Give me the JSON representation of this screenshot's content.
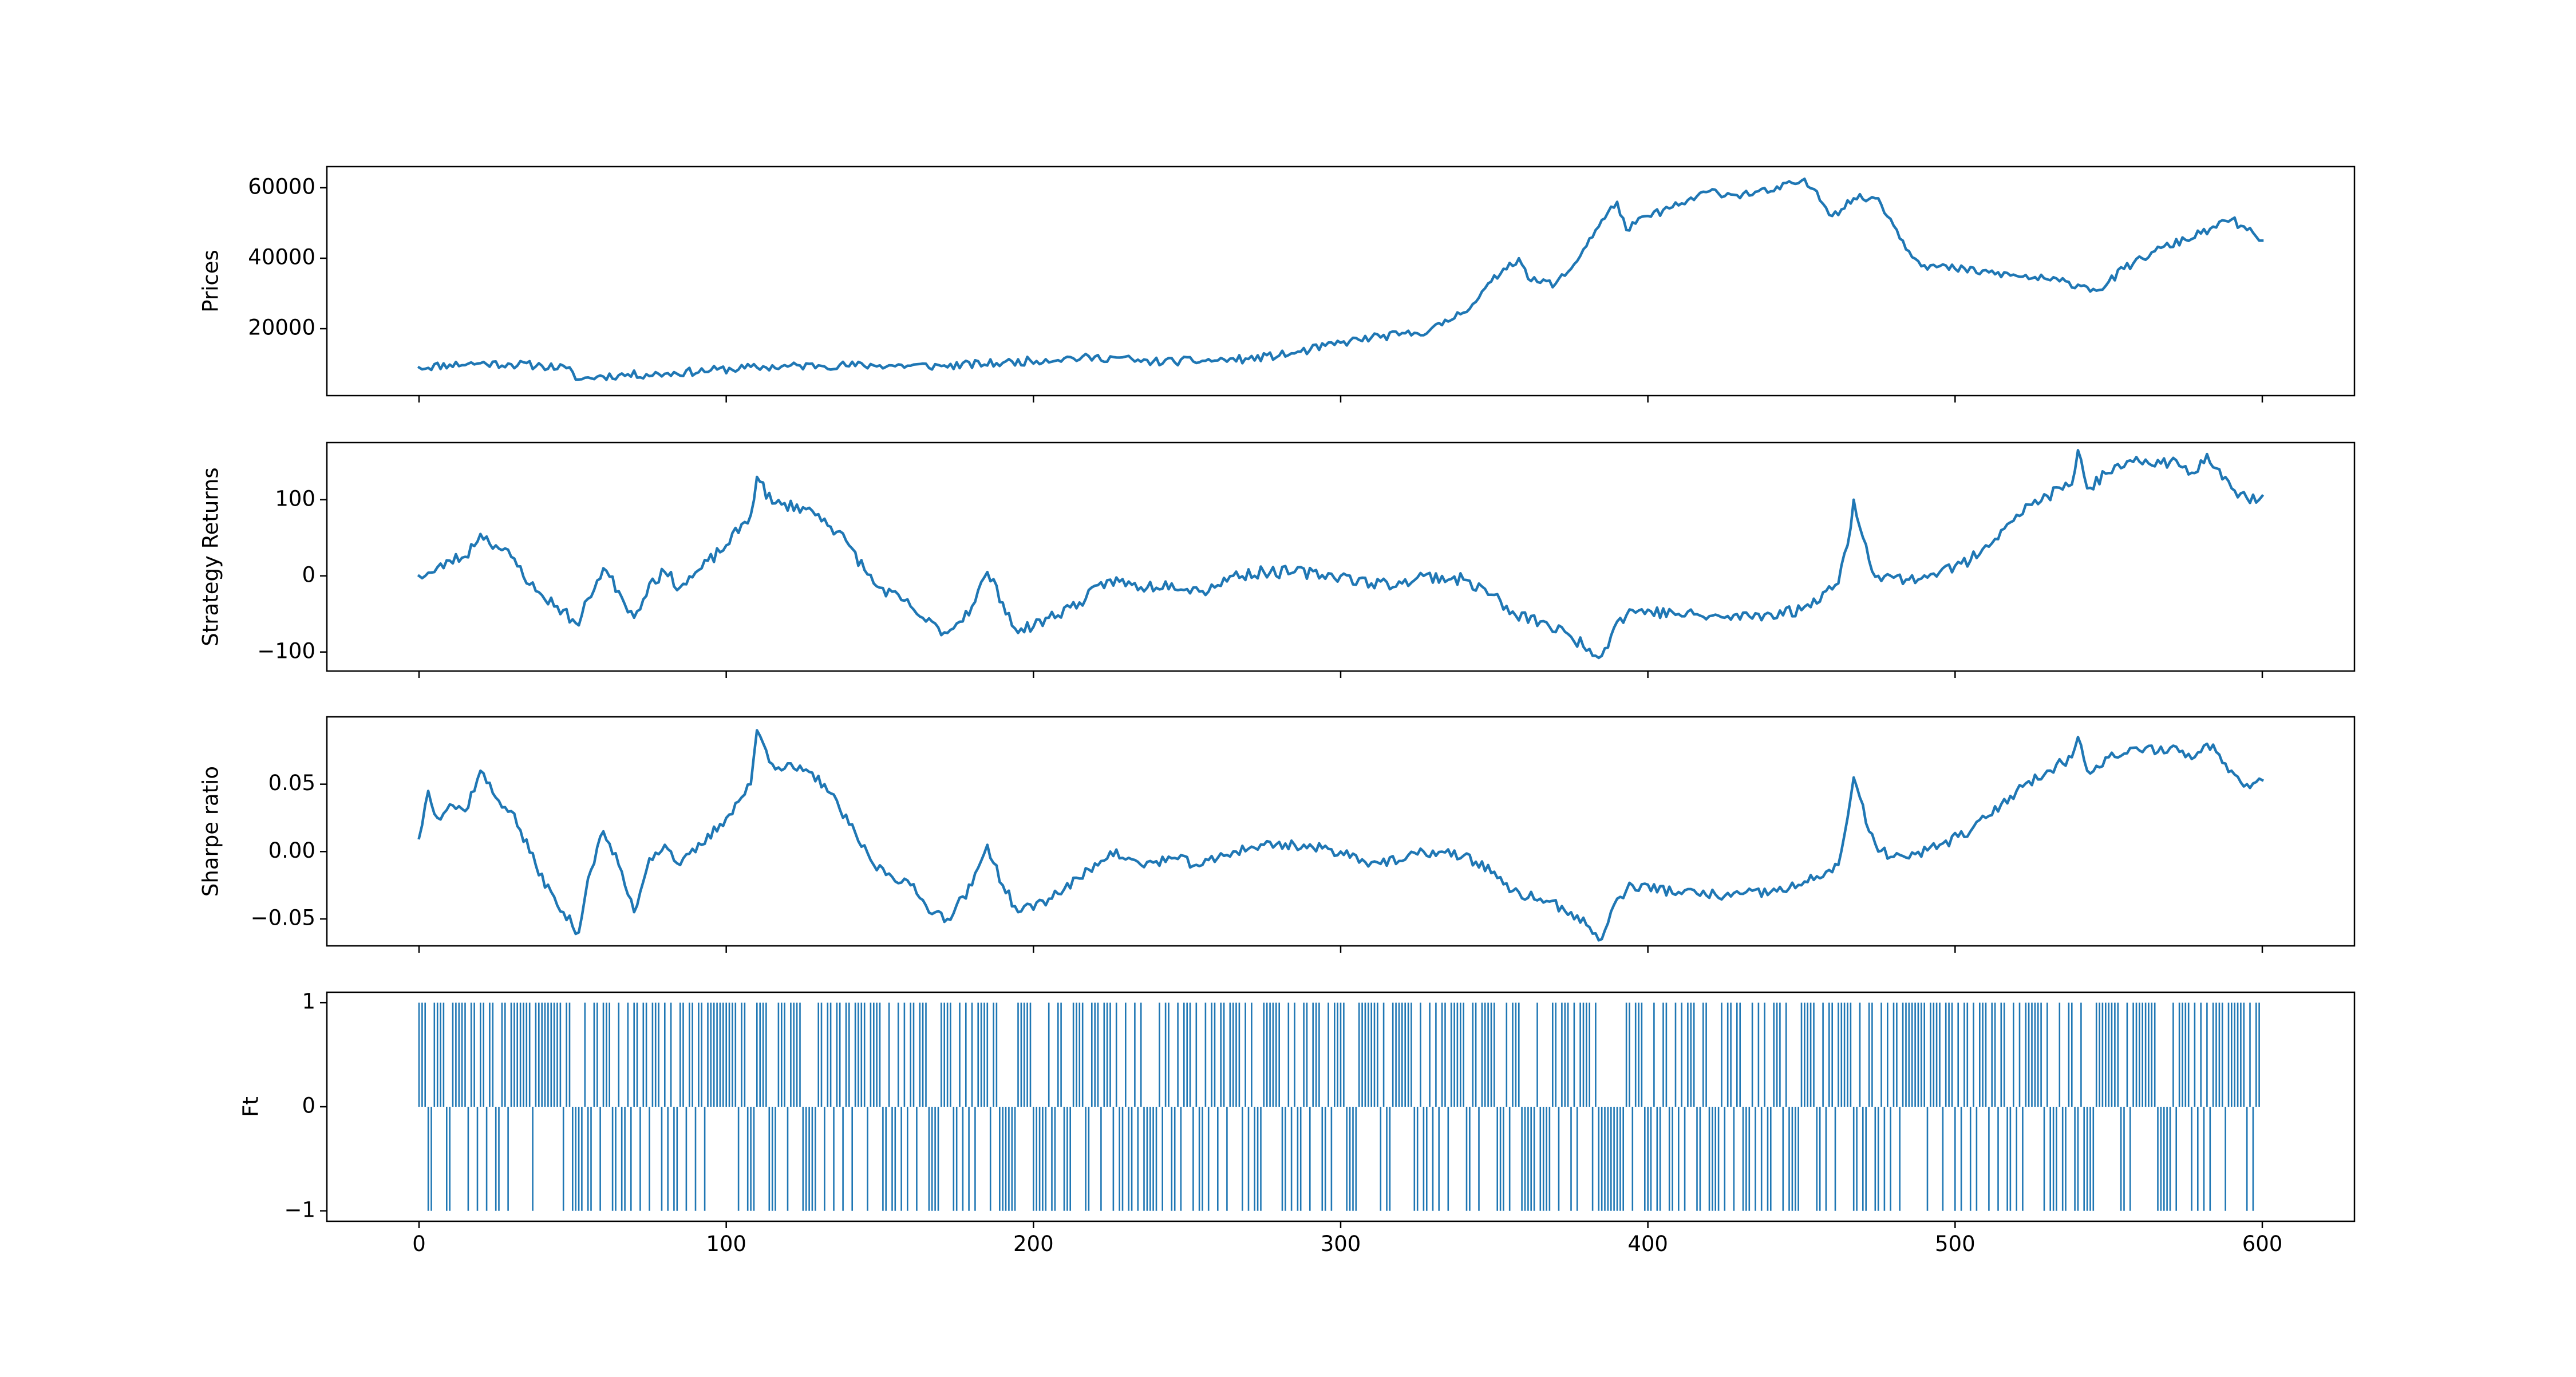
{
  "chart_data": [
    {
      "type": "line",
      "ylabel": "Prices",
      "xlim": [
        -30,
        630
      ],
      "ylim": [
        1000,
        66000
      ],
      "xticks": [
        0,
        100,
        200,
        300,
        400,
        500,
        600
      ],
      "xticklabels": [
        "",
        "",
        "",
        "",
        "",
        "",
        ""
      ],
      "yticks": [
        20000,
        40000,
        60000
      ],
      "yticklabels": [
        "20000",
        "40000",
        "60000"
      ],
      "color": "#1f77b4",
      "anchors": [
        [
          0,
          9000
        ],
        [
          10,
          9800
        ],
        [
          20,
          10200
        ],
        [
          30,
          9900
        ],
        [
          40,
          9500
        ],
        [
          48,
          8800
        ],
        [
          52,
          5600
        ],
        [
          58,
          6400
        ],
        [
          65,
          6800
        ],
        [
          80,
          7200
        ],
        [
          95,
          8200
        ],
        [
          110,
          9000
        ],
        [
          130,
          9600
        ],
        [
          150,
          9600
        ],
        [
          170,
          9400
        ],
        [
          190,
          10300
        ],
        [
          210,
          11600
        ],
        [
          228,
          11800
        ],
        [
          235,
          10600
        ],
        [
          255,
          10900
        ],
        [
          270,
          11400
        ],
        [
          285,
          13000
        ],
        [
          300,
          16000
        ],
        [
          310,
          17500
        ],
        [
          325,
          18700
        ],
        [
          333,
          21000
        ],
        [
          343,
          27000
        ],
        [
          353,
          37000
        ],
        [
          358,
          40000
        ],
        [
          362,
          33500
        ],
        [
          370,
          32800
        ],
        [
          375,
          37000
        ],
        [
          383,
          48000
        ],
        [
          390,
          56000
        ],
        [
          393,
          48000
        ],
        [
          400,
          52000
        ],
        [
          410,
          55000
        ],
        [
          420,
          59000
        ],
        [
          428,
          58000
        ],
        [
          440,
          59000
        ],
        [
          450,
          62000
        ],
        [
          455,
          59000
        ],
        [
          460,
          52000
        ],
        [
          467,
          57000
        ],
        [
          475,
          57000
        ],
        [
          485,
          42000
        ],
        [
          490,
          38000
        ],
        [
          500,
          37000
        ],
        [
          520,
          35000
        ],
        [
          530,
          34000
        ],
        [
          540,
          32500
        ],
        [
          547,
          31000
        ],
        [
          555,
          37000
        ],
        [
          565,
          42000
        ],
        [
          580,
          47000
        ],
        [
          590,
          51000
        ],
        [
          595,
          48000
        ],
        [
          600,
          45000
        ]
      ],
      "noise": 1200,
      "seed": 11
    },
    {
      "type": "line",
      "ylabel": "Strategy Returns",
      "xlim": [
        -30,
        630
      ],
      "ylim": [
        -125,
        175
      ],
      "xticks": [
        0,
        100,
        200,
        300,
        400,
        500,
        600
      ],
      "xticklabels": [
        "",
        "",
        "",
        "",
        "",
        "",
        ""
      ],
      "yticks": [
        -100,
        0,
        100
      ],
      "yticklabels": [
        "−100",
        "0",
        "100"
      ],
      "color": "#1f77b4",
      "anchors": [
        [
          0,
          0
        ],
        [
          5,
          5
        ],
        [
          10,
          20
        ],
        [
          15,
          25
        ],
        [
          20,
          55
        ],
        [
          25,
          40
        ],
        [
          30,
          25
        ],
        [
          38,
          -20
        ],
        [
          45,
          -40
        ],
        [
          52,
          -65
        ],
        [
          55,
          -30
        ],
        [
          60,
          10
        ],
        [
          65,
          -20
        ],
        [
          70,
          -55
        ],
        [
          75,
          -10
        ],
        [
          80,
          5
        ],
        [
          85,
          -15
        ],
        [
          92,
          10
        ],
        [
          100,
          40
        ],
        [
          108,
          80
        ],
        [
          110,
          130
        ],
        [
          115,
          95
        ],
        [
          125,
          90
        ],
        [
          132,
          75
        ],
        [
          140,
          40
        ],
        [
          148,
          -10
        ],
        [
          160,
          -40
        ],
        [
          165,
          -60
        ],
        [
          172,
          -75
        ],
        [
          180,
          -40
        ],
        [
          185,
          5
        ],
        [
          190,
          -35
        ],
        [
          195,
          -75
        ],
        [
          205,
          -55
        ],
        [
          215,
          -35
        ],
        [
          225,
          -5
        ],
        [
          235,
          -15
        ],
        [
          245,
          -10
        ],
        [
          255,
          -20
        ],
        [
          265,
          0
        ],
        [
          275,
          5
        ],
        [
          285,
          5
        ],
        [
          300,
          0
        ],
        [
          310,
          -10
        ],
        [
          320,
          -10
        ],
        [
          327,
          0
        ],
        [
          340,
          -5
        ],
        [
          350,
          -25
        ],
        [
          355,
          -50
        ],
        [
          365,
          -60
        ],
        [
          375,
          -80
        ],
        [
          385,
          -105
        ],
        [
          390,
          -60
        ],
        [
          395,
          -45
        ],
        [
          410,
          -50
        ],
        [
          425,
          -55
        ],
        [
          440,
          -50
        ],
        [
          450,
          -45
        ],
        [
          458,
          -20
        ],
        [
          462,
          -10
        ],
        [
          465,
          40
        ],
        [
          467,
          100
        ],
        [
          472,
          20
        ],
        [
          475,
          0
        ],
        [
          485,
          -5
        ],
        [
          495,
          5
        ],
        [
          505,
          20
        ],
        [
          510,
          40
        ],
        [
          515,
          60
        ],
        [
          520,
          80
        ],
        [
          530,
          105
        ],
        [
          538,
          120
        ],
        [
          540,
          165
        ],
        [
          543,
          115
        ],
        [
          550,
          135
        ],
        [
          560,
          150
        ],
        [
          570,
          150
        ],
        [
          578,
          135
        ],
        [
          582,
          160
        ],
        [
          586,
          140
        ],
        [
          590,
          115
        ],
        [
          595,
          102
        ],
        [
          600,
          105
        ]
      ],
      "noise": 8,
      "seed": 23
    },
    {
      "type": "line",
      "ylabel": "Sharpe ratio",
      "xlim": [
        -30,
        630
      ],
      "ylim": [
        -0.07,
        0.1
      ],
      "xticks": [
        0,
        100,
        200,
        300,
        400,
        500,
        600
      ],
      "xticklabels": [
        "",
        "",
        "",
        "",
        "",
        "",
        ""
      ],
      "yticks": [
        -0.05,
        0.0,
        0.05
      ],
      "yticklabels": [
        "−0.05",
        "0.00",
        "0.05"
      ],
      "color": "#1f77b4",
      "anchors": [
        [
          0,
          0.01
        ],
        [
          3,
          0.045
        ],
        [
          6,
          0.025
        ],
        [
          10,
          0.035
        ],
        [
          15,
          0.03
        ],
        [
          20,
          0.06
        ],
        [
          25,
          0.04
        ],
        [
          30,
          0.03
        ],
        [
          38,
          -0.01
        ],
        [
          45,
          -0.04
        ],
        [
          52,
          -0.06
        ],
        [
          55,
          -0.02
        ],
        [
          60,
          0.015
        ],
        [
          65,
          -0.01
        ],
        [
          70,
          -0.045
        ],
        [
          75,
          -0.005
        ],
        [
          80,
          0.005
        ],
        [
          85,
          -0.01
        ],
        [
          92,
          0.005
        ],
        [
          100,
          0.025
        ],
        [
          108,
          0.05
        ],
        [
          110,
          0.09
        ],
        [
          115,
          0.065
        ],
        [
          125,
          0.06
        ],
        [
          132,
          0.05
        ],
        [
          140,
          0.02
        ],
        [
          148,
          -0.01
        ],
        [
          160,
          -0.025
        ],
        [
          165,
          -0.04
        ],
        [
          172,
          -0.05
        ],
        [
          180,
          -0.025
        ],
        [
          185,
          0.005
        ],
        [
          190,
          -0.025
        ],
        [
          195,
          -0.045
        ],
        [
          205,
          -0.035
        ],
        [
          215,
          -0.02
        ],
        [
          225,
          0.0
        ],
        [
          235,
          -0.01
        ],
        [
          245,
          -0.005
        ],
        [
          255,
          -0.01
        ],
        [
          265,
          0.0
        ],
        [
          275,
          0.005
        ],
        [
          285,
          0.005
        ],
        [
          300,
          0.0
        ],
        [
          310,
          -0.008
        ],
        [
          320,
          -0.007
        ],
        [
          327,
          0.0
        ],
        [
          340,
          -0.003
        ],
        [
          350,
          -0.015
        ],
        [
          355,
          -0.03
        ],
        [
          365,
          -0.035
        ],
        [
          375,
          -0.045
        ],
        [
          385,
          -0.065
        ],
        [
          390,
          -0.035
        ],
        [
          395,
          -0.025
        ],
        [
          410,
          -0.03
        ],
        [
          425,
          -0.033
        ],
        [
          440,
          -0.03
        ],
        [
          450,
          -0.025
        ],
        [
          458,
          -0.015
        ],
        [
          462,
          -0.01
        ],
        [
          465,
          0.025
        ],
        [
          467,
          0.055
        ],
        [
          472,
          0.015
        ],
        [
          475,
          0.0
        ],
        [
          485,
          -0.005
        ],
        [
          495,
          0.005
        ],
        [
          505,
          0.015
        ],
        [
          510,
          0.025
        ],
        [
          515,
          0.035
        ],
        [
          520,
          0.045
        ],
        [
          530,
          0.06
        ],
        [
          538,
          0.07
        ],
        [
          540,
          0.085
        ],
        [
          543,
          0.06
        ],
        [
          550,
          0.07
        ],
        [
          560,
          0.075
        ],
        [
          570,
          0.077
        ],
        [
          578,
          0.07
        ],
        [
          582,
          0.08
        ],
        [
          586,
          0.072
        ],
        [
          590,
          0.06
        ],
        [
          595,
          0.05
        ],
        [
          600,
          0.053
        ]
      ],
      "noise": 0.004,
      "seed": 37
    },
    {
      "type": "stem",
      "ylabel": "Ft",
      "xlim": [
        -30,
        630
      ],
      "ylim": [
        -1.1,
        1.1
      ],
      "xticks": [
        0,
        100,
        200,
        300,
        400,
        500,
        600
      ],
      "xticklabels": [
        "0",
        "100",
        "200",
        "300",
        "400",
        "500",
        "600"
      ],
      "yticks": [
        -1,
        0,
        1
      ],
      "yticklabels": [
        "−1",
        "0",
        "1"
      ],
      "color": "#1f77b4",
      "n": 600,
      "values_note": "each bar is either +1 or -1, one per time step 0-599",
      "dense_minus_ranges": [
        [
          50,
          56
        ],
        [
          236,
          242
        ],
        [
          535,
          545
        ],
        [
          385,
          392
        ]
      ],
      "seed": 53
    }
  ]
}
